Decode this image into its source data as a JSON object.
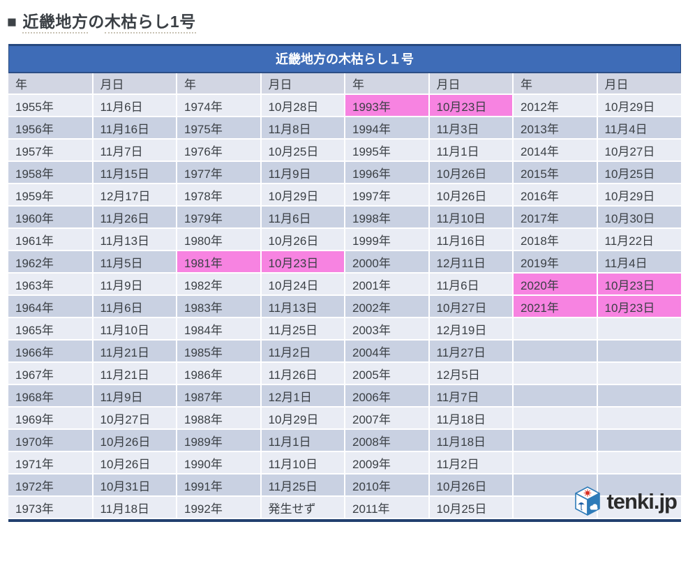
{
  "page_title": {
    "marker": "■",
    "seg1": "近畿地方",
    "particle": "の",
    "seg2": "木枯らし1号"
  },
  "chart_data": {
    "type": "table",
    "title": "近畿地方の木枯らし１号",
    "column_headers": [
      "年",
      "月日",
      "年",
      "月日",
      "年",
      "月日",
      "年",
      "月日"
    ],
    "groups": [
      {
        "rows": [
          {
            "year": "1955年",
            "date": "11月6日"
          },
          {
            "year": "1956年",
            "date": "11月16日"
          },
          {
            "year": "1957年",
            "date": "11月7日"
          },
          {
            "year": "1958年",
            "date": "11月15日"
          },
          {
            "year": "1959年",
            "date": "12月17日"
          },
          {
            "year": "1960年",
            "date": "11月26日"
          },
          {
            "year": "1961年",
            "date": "11月13日"
          },
          {
            "year": "1962年",
            "date": "11月5日"
          },
          {
            "year": "1963年",
            "date": "11月9日"
          },
          {
            "year": "1964年",
            "date": "11月6日"
          },
          {
            "year": "1965年",
            "date": "11月10日"
          },
          {
            "year": "1966年",
            "date": "11月21日"
          },
          {
            "year": "1967年",
            "date": "11月21日"
          },
          {
            "year": "1968年",
            "date": "11月9日"
          },
          {
            "year": "1969年",
            "date": "10月27日"
          },
          {
            "year": "1970年",
            "date": "10月26日"
          },
          {
            "year": "1971年",
            "date": "10月26日"
          },
          {
            "year": "1972年",
            "date": "10月31日"
          },
          {
            "year": "1973年",
            "date": "11月18日"
          }
        ]
      },
      {
        "rows": [
          {
            "year": "1974年",
            "date": "10月28日"
          },
          {
            "year": "1975年",
            "date": "11月8日"
          },
          {
            "year": "1976年",
            "date": "10月25日"
          },
          {
            "year": "1977年",
            "date": "11月9日"
          },
          {
            "year": "1978年",
            "date": "10月29日"
          },
          {
            "year": "1979年",
            "date": "11月6日"
          },
          {
            "year": "1980年",
            "date": "10月26日"
          },
          {
            "year": "1981年",
            "date": "10月23日",
            "highlight": true
          },
          {
            "year": "1982年",
            "date": "10月24日"
          },
          {
            "year": "1983年",
            "date": "11月13日"
          },
          {
            "year": "1984年",
            "date": "11月25日"
          },
          {
            "year": "1985年",
            "date": "11月2日"
          },
          {
            "year": "1986年",
            "date": "11月26日"
          },
          {
            "year": "1987年",
            "date": "12月1日"
          },
          {
            "year": "1988年",
            "date": "10月29日"
          },
          {
            "year": "1989年",
            "date": "11月1日"
          },
          {
            "year": "1990年",
            "date": "11月10日"
          },
          {
            "year": "1991年",
            "date": "11月25日"
          },
          {
            "year": "1992年",
            "date": "発生せず"
          }
        ]
      },
      {
        "rows": [
          {
            "year": "1993年",
            "date": "10月23日",
            "highlight": true
          },
          {
            "year": "1994年",
            "date": "11月3日"
          },
          {
            "year": "1995年",
            "date": "11月1日"
          },
          {
            "year": "1996年",
            "date": "10月26日"
          },
          {
            "year": "1997年",
            "date": "10月26日"
          },
          {
            "year": "1998年",
            "date": "11月10日"
          },
          {
            "year": "1999年",
            "date": "11月16日"
          },
          {
            "year": "2000年",
            "date": "12月11日"
          },
          {
            "year": "2001年",
            "date": "11月6日"
          },
          {
            "year": "2002年",
            "date": "10月27日"
          },
          {
            "year": "2003年",
            "date": "12月19日"
          },
          {
            "year": "2004年",
            "date": "11月27日"
          },
          {
            "year": "2005年",
            "date": "12月5日"
          },
          {
            "year": "2006年",
            "date": "11月7日"
          },
          {
            "year": "2007年",
            "date": "11月18日"
          },
          {
            "year": "2008年",
            "date": "11月18日"
          },
          {
            "year": "2009年",
            "date": "11月2日"
          },
          {
            "year": "2010年",
            "date": "10月26日"
          },
          {
            "year": "2011年",
            "date": "10月25日"
          }
        ]
      },
      {
        "rows": [
          {
            "year": "2012年",
            "date": "10月29日"
          },
          {
            "year": "2013年",
            "date": "11月4日"
          },
          {
            "year": "2014年",
            "date": "10月27日"
          },
          {
            "year": "2015年",
            "date": "10月25日"
          },
          {
            "year": "2016年",
            "date": "10月29日"
          },
          {
            "year": "2017年",
            "date": "10月30日"
          },
          {
            "year": "2018年",
            "date": "11月22日"
          },
          {
            "year": "2019年",
            "date": "11月4日"
          },
          {
            "year": "2020年",
            "date": "10月23日",
            "highlight": true
          },
          {
            "year": "2021年",
            "date": "10月23日",
            "highlight": true
          }
        ]
      }
    ]
  },
  "logo": {
    "text_main": "tenki",
    "text_suffix": ".jp"
  },
  "colors": {
    "accent_blue": "#3e6cb7",
    "navy_border": "#22406f",
    "header_bg": "#d2d6e3",
    "row_light": "#e9ecf4",
    "row_dark": "#c9d1e2",
    "highlight_pink": "#f783e1",
    "text_dark": "#3a3f44",
    "logo_blue": "#2e7bb8"
  }
}
